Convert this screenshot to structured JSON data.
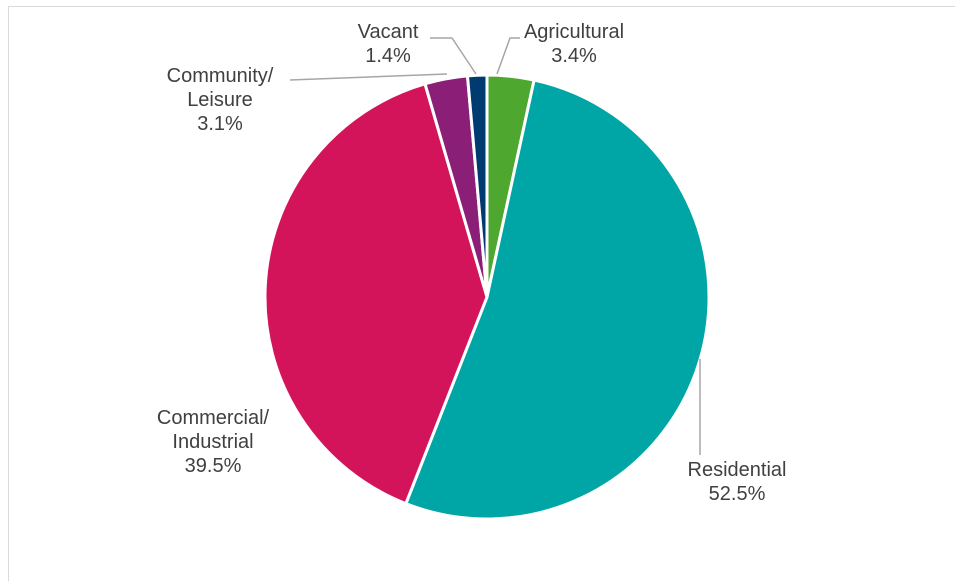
{
  "chart_data": {
    "type": "pie",
    "title": "",
    "start_angle_deg": 0,
    "direction": "clockwise",
    "slices": [
      {
        "label_lines": [
          "Agricultural"
        ],
        "value": 3.4,
        "value_label": "3.4%",
        "color": "#4ea72e"
      },
      {
        "label_lines": [
          "Residential"
        ],
        "value": 52.5,
        "value_label": "52.5%",
        "color": "#00a5a5"
      },
      {
        "label_lines": [
          "Commercial/",
          "Industrial"
        ],
        "value": 39.5,
        "value_label": "39.5%",
        "color": "#d4145a"
      },
      {
        "label_lines": [
          "Community/",
          "Leisure"
        ],
        "value": 3.1,
        "value_label": "3.1%",
        "color": "#8b1e77"
      },
      {
        "label_lines": [
          "Vacant"
        ],
        "value": 1.4,
        "value_label": "1.4%",
        "color": "#003a70"
      }
    ],
    "legend": "none",
    "data_labels": "outside with leader lines"
  }
}
